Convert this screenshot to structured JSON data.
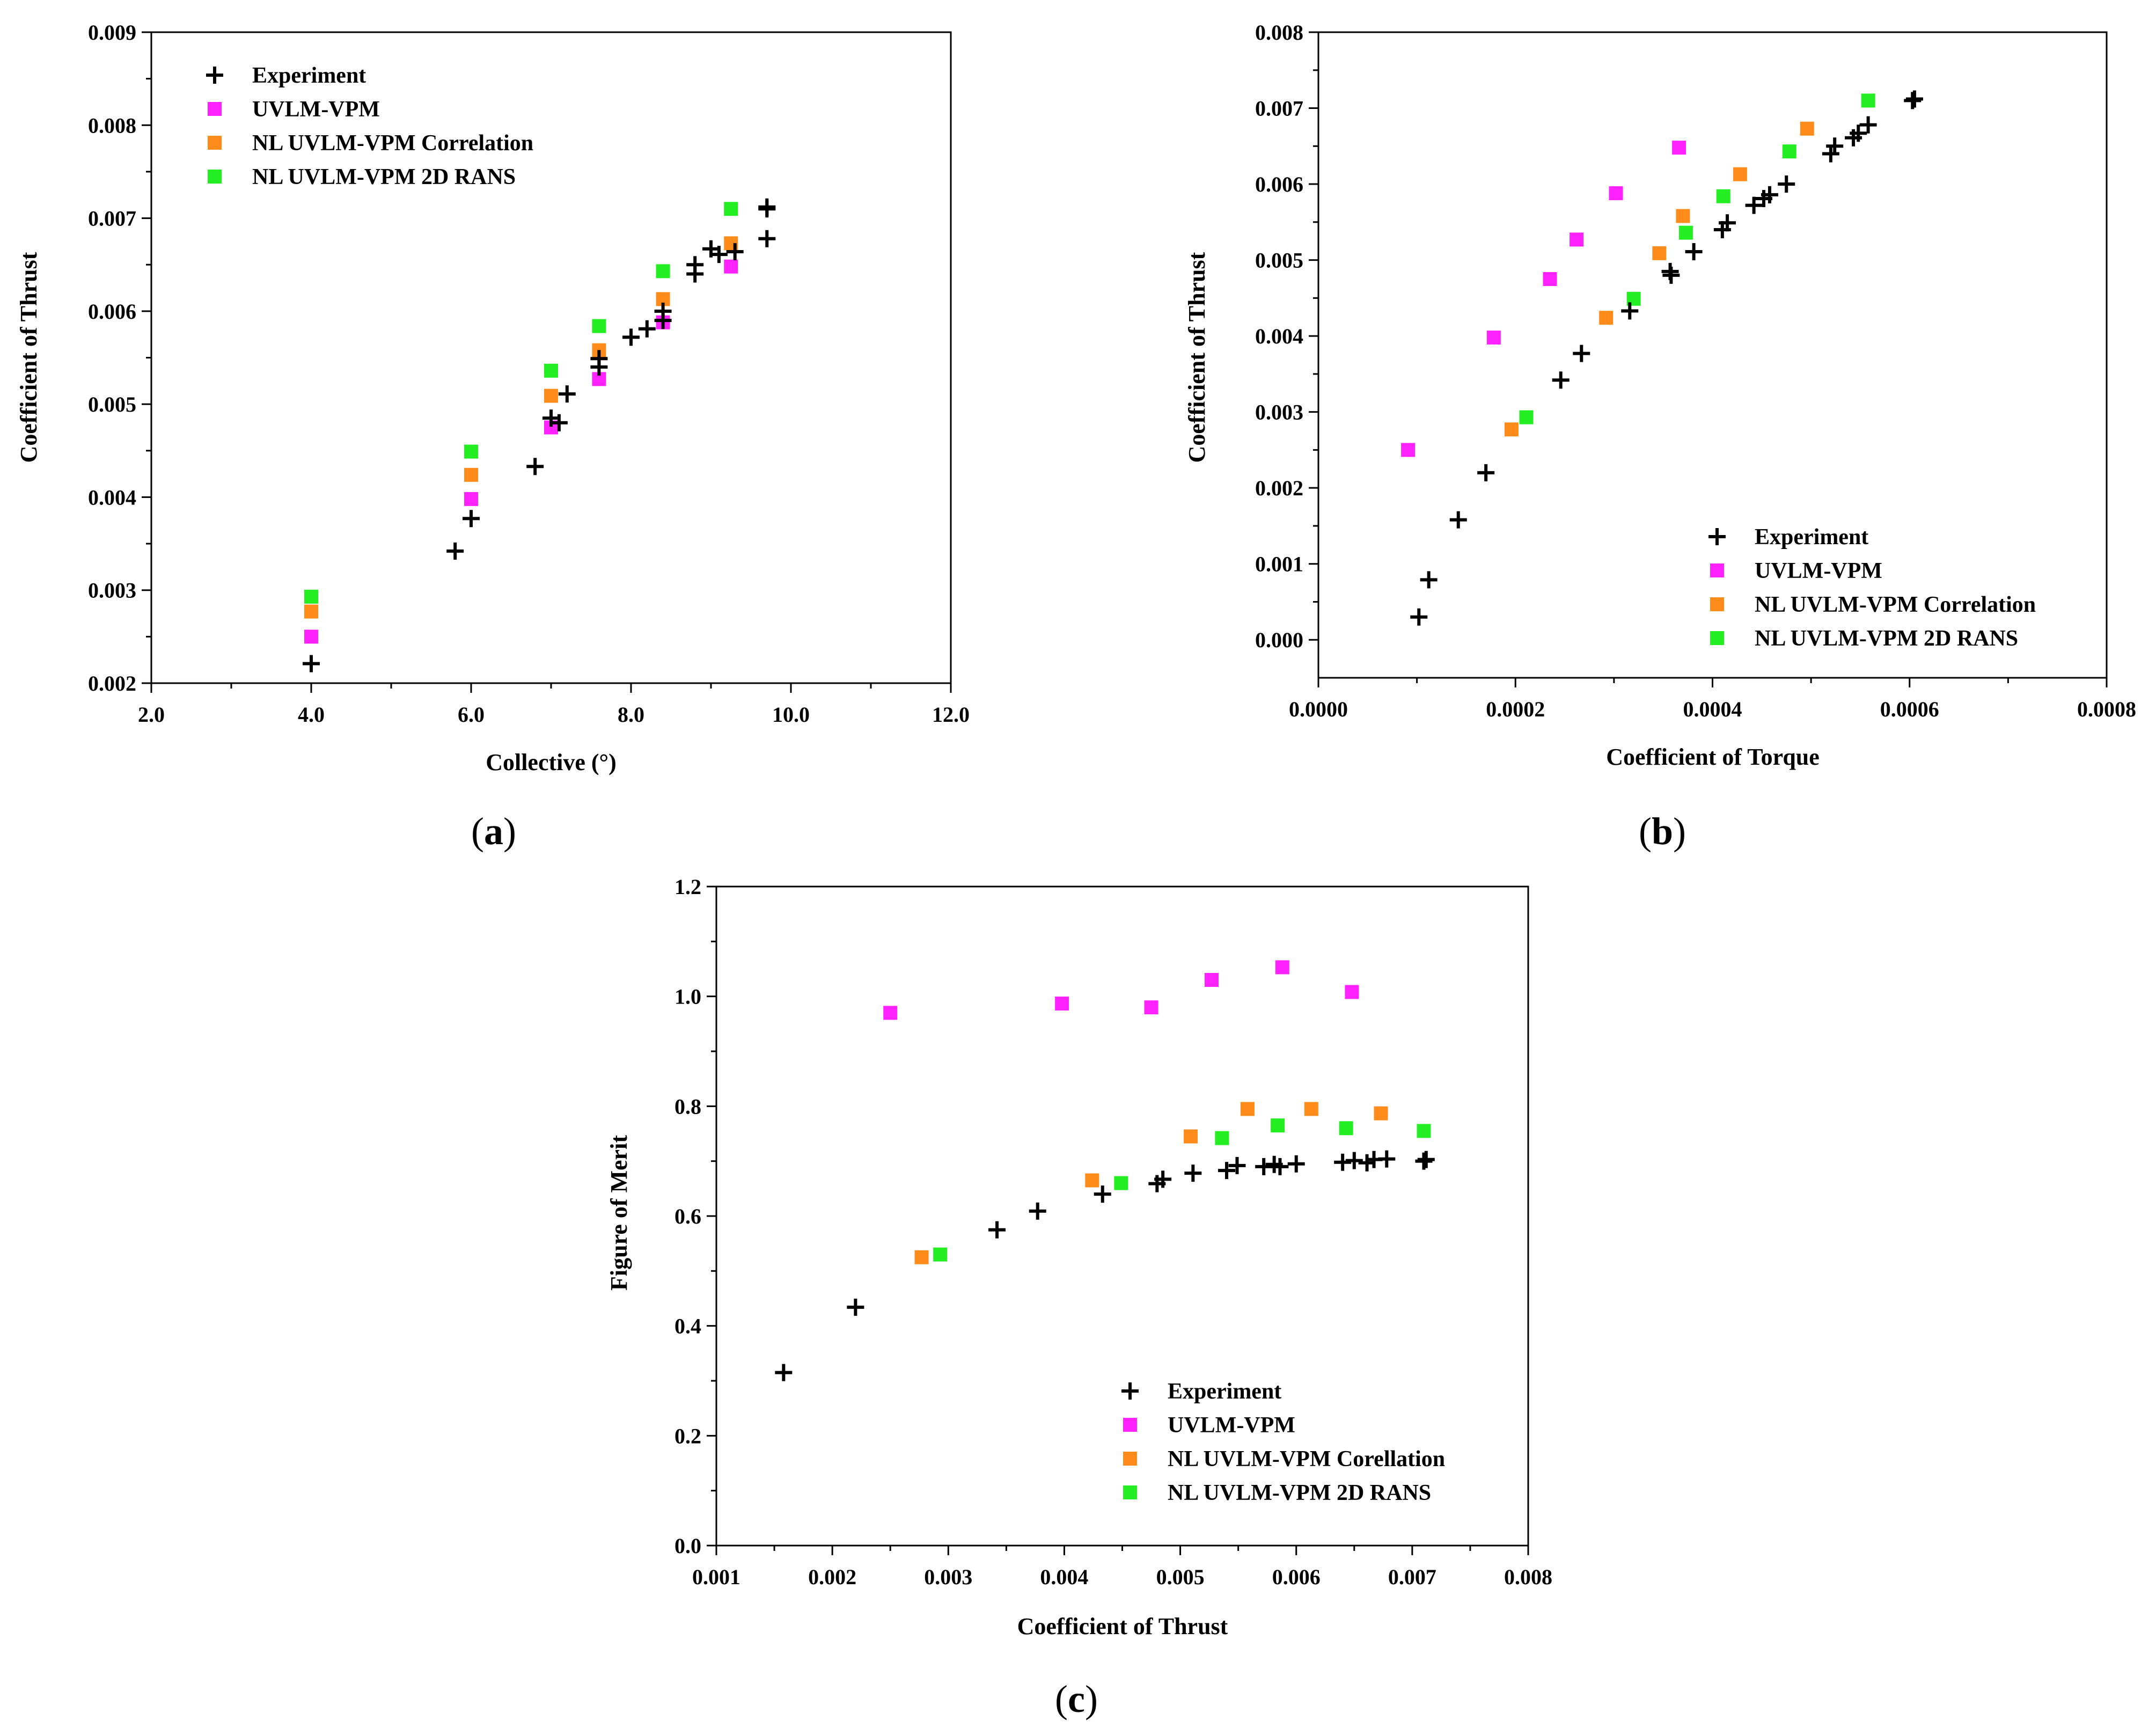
{
  "colors": {
    "experiment": "#000000",
    "uvlm": "#ff22ff",
    "correlation": "#ff8c1a",
    "rans": "#22ee22"
  },
  "chart_data": [
    {
      "id": "a",
      "type": "scatter",
      "caption": "a",
      "xlabel": "Collective (°)",
      "ylabel": "Coefficient of Thrust",
      "xlim": [
        2.0,
        12.0
      ],
      "ylim": [
        0.002,
        0.009
      ],
      "xticks": [
        "2.0",
        "4.0",
        "6.0",
        "8.0",
        "10.0",
        "12.0"
      ],
      "xtick_values": [
        2,
        4,
        6,
        8,
        10,
        12
      ],
      "yticks": [
        "0.002",
        "0.003",
        "0.004",
        "0.005",
        "0.006",
        "0.007",
        "0.008",
        "0.009"
      ],
      "ytick_values": [
        0.002,
        0.003,
        0.004,
        0.005,
        0.006,
        0.007,
        0.008,
        0.009
      ],
      "legend_position": "top-left",
      "series": [
        {
          "name": "Experiment",
          "marker": "plus",
          "color_key": "experiment",
          "points": [
            [
              4.0,
              0.00221
            ],
            [
              5.8,
              0.00342
            ],
            [
              6.0,
              0.00377
            ],
            [
              6.8,
              0.00433
            ],
            [
              7.0,
              0.00485
            ],
            [
              7.1,
              0.0048
            ],
            [
              7.2,
              0.00511
            ],
            [
              7.6,
              0.0054
            ],
            [
              7.6,
              0.00549
            ],
            [
              8.0,
              0.00572
            ],
            [
              8.2,
              0.00581
            ],
            [
              8.4,
              0.0059
            ],
            [
              8.4,
              0.006
            ],
            [
              8.8,
              0.0064
            ],
            [
              8.8,
              0.0065
            ],
            [
              9.0,
              0.00667
            ],
            [
              9.1,
              0.00661
            ],
            [
              9.3,
              0.00664
            ],
            [
              9.7,
              0.0071
            ],
            [
              9.7,
              0.00712
            ],
            [
              9.7,
              0.00678
            ]
          ]
        },
        {
          "name": "UVLM-VPM",
          "marker": "square",
          "color_key": "uvlm",
          "points": [
            [
              4.0,
              0.0025
            ],
            [
              6.0,
              0.00398
            ],
            [
              7.0,
              0.00475
            ],
            [
              7.6,
              0.00527
            ],
            [
              8.4,
              0.00588
            ],
            [
              9.25,
              0.00648
            ]
          ]
        },
        {
          "name": "NL UVLM-VPM Correlation",
          "marker": "square",
          "color_key": "correlation",
          "points": [
            [
              4.0,
              0.00277
            ],
            [
              6.0,
              0.00424
            ],
            [
              7.0,
              0.00509
            ],
            [
              7.6,
              0.00558
            ],
            [
              8.4,
              0.00613
            ],
            [
              9.25,
              0.00673
            ]
          ]
        },
        {
          "name": "NL UVLM-VPM 2D RANS",
          "marker": "square",
          "color_key": "rans",
          "points": [
            [
              4.0,
              0.00293
            ],
            [
              6.0,
              0.00449
            ],
            [
              7.0,
              0.00536
            ],
            [
              7.6,
              0.00584
            ],
            [
              8.4,
              0.00643
            ],
            [
              9.25,
              0.0071
            ]
          ]
        }
      ]
    },
    {
      "id": "b",
      "type": "scatter",
      "caption": "b",
      "xlabel": "Coefficient of Torque",
      "ylabel": "Coefficient of Thrust",
      "xlim": [
        0.0,
        0.0008
      ],
      "ylim": [
        -0.0005,
        0.008
      ],
      "xticks": [
        "0.0000",
        "0.0002",
        "0.0004",
        "0.0006",
        "0.0008"
      ],
      "xtick_values": [
        0.0,
        0.0002,
        0.0004,
        0.0006,
        0.0008
      ],
      "yticks": [
        "0.000",
        "0.001",
        "0.002",
        "0.003",
        "0.004",
        "0.005",
        "0.006",
        "0.007",
        "0.008"
      ],
      "ytick_values": [
        0.0,
        0.001,
        0.002,
        0.003,
        0.004,
        0.005,
        0.006,
        0.007,
        0.008
      ],
      "legend_position": "bottom-right",
      "series": [
        {
          "name": "Experiment",
          "marker": "plus",
          "color_key": "experiment",
          "points": [
            [
              0.000102,
              0.0003
            ],
            [
              0.000112,
              0.00079
            ],
            [
              0.000142,
              0.00158
            ],
            [
              0.00017,
              0.0022
            ],
            [
              0.000246,
              0.00342
            ],
            [
              0.000267,
              0.00377
            ],
            [
              0.000316,
              0.00433
            ],
            [
              0.000357,
              0.00485
            ],
            [
              0.000358,
              0.0048
            ],
            [
              0.000381,
              0.00511
            ],
            [
              0.00041,
              0.0054
            ],
            [
              0.000415,
              0.00549
            ],
            [
              0.000442,
              0.00572
            ],
            [
              0.000452,
              0.00581
            ],
            [
              0.000458,
              0.00586
            ],
            [
              0.000475,
              0.006
            ],
            [
              0.00052,
              0.0064
            ],
            [
              0.000524,
              0.0065
            ],
            [
              0.000543,
              0.00661
            ],
            [
              0.000548,
              0.00667
            ],
            [
              0.000558,
              0.00678
            ],
            [
              0.000603,
              0.0071
            ],
            [
              0.000605,
              0.00712
            ]
          ]
        },
        {
          "name": "UVLM-VPM",
          "marker": "square",
          "color_key": "uvlm",
          "points": [
            [
              9.1e-05,
              0.0025
            ],
            [
              0.000178,
              0.00398
            ],
            [
              0.000235,
              0.00475
            ],
            [
              0.000262,
              0.00527
            ],
            [
              0.000302,
              0.00588
            ],
            [
              0.000366,
              0.00648
            ]
          ]
        },
        {
          "name": "NL UVLM-VPM Correlation",
          "marker": "square",
          "color_key": "correlation",
          "points": [
            [
              0.000196,
              0.00277
            ],
            [
              0.000292,
              0.00424
            ],
            [
              0.000346,
              0.00509
            ],
            [
              0.00037,
              0.00558
            ],
            [
              0.000428,
              0.00613
            ],
            [
              0.000496,
              0.00673
            ]
          ]
        },
        {
          "name": "NL UVLM-VPM 2D RANS",
          "marker": "square",
          "color_key": "rans",
          "points": [
            [
              0.000211,
              0.00293
            ],
            [
              0.00032,
              0.00449
            ],
            [
              0.000373,
              0.00536
            ],
            [
              0.000411,
              0.00584
            ],
            [
              0.000478,
              0.00643
            ],
            [
              0.000558,
              0.0071
            ]
          ]
        }
      ]
    },
    {
      "id": "c",
      "type": "scatter",
      "caption": "c",
      "xlabel": "Coefficient of Thrust",
      "ylabel": "Figure of Merit",
      "xlim": [
        0.001,
        0.008
      ],
      "ylim": [
        0.0,
        1.2
      ],
      "xticks": [
        "0.001",
        "0.002",
        "0.003",
        "0.004",
        "0.005",
        "0.006",
        "0.007",
        "0.008"
      ],
      "xtick_values": [
        0.001,
        0.002,
        0.003,
        0.004,
        0.005,
        0.006,
        0.007,
        0.008
      ],
      "yticks": [
        "0.0",
        "0.2",
        "0.4",
        "0.6",
        "0.8",
        "1.0",
        "1.2"
      ],
      "ytick_values": [
        0.0,
        0.2,
        0.4,
        0.6,
        0.8,
        1.0,
        1.2
      ],
      "legend_position": "bottom-right",
      "series": [
        {
          "name": "Experiment",
          "marker": "plus",
          "color_key": "experiment",
          "points": [
            [
              0.00158,
              0.315
            ],
            [
              0.0022,
              0.434
            ],
            [
              0.00342,
              0.575
            ],
            [
              0.00377,
              0.609
            ],
            [
              0.00433,
              0.64
            ],
            [
              0.0048,
              0.659
            ],
            [
              0.00485,
              0.667
            ],
            [
              0.00511,
              0.678
            ],
            [
              0.0054,
              0.683
            ],
            [
              0.00549,
              0.692
            ],
            [
              0.00572,
              0.69
            ],
            [
              0.00581,
              0.694
            ],
            [
              0.00586,
              0.69
            ],
            [
              0.006,
              0.695
            ],
            [
              0.0064,
              0.698
            ],
            [
              0.0065,
              0.701
            ],
            [
              0.00661,
              0.697
            ],
            [
              0.00667,
              0.703
            ],
            [
              0.00678,
              0.704
            ],
            [
              0.0071,
              0.7
            ],
            [
              0.00712,
              0.703
            ]
          ]
        },
        {
          "name": "UVLM-VPM",
          "marker": "square",
          "color_key": "uvlm",
          "points": [
            [
              0.0025,
              0.97
            ],
            [
              0.00398,
              0.987
            ],
            [
              0.00475,
              0.98
            ],
            [
              0.00527,
              1.03
            ],
            [
              0.00588,
              1.053
            ],
            [
              0.00648,
              1.008
            ]
          ]
        },
        {
          "name": "NL UVLM-VPM Corellation",
          "marker": "square",
          "color_key": "correlation",
          "points": [
            [
              0.00277,
              0.525
            ],
            [
              0.00424,
              0.665
            ],
            [
              0.00509,
              0.745
            ],
            [
              0.00558,
              0.795
            ],
            [
              0.00613,
              0.795
            ],
            [
              0.00673,
              0.787
            ]
          ]
        },
        {
          "name": "NL UVLM-VPM 2D RANS",
          "marker": "square",
          "color_key": "rans",
          "points": [
            [
              0.00293,
              0.53
            ],
            [
              0.00449,
              0.66
            ],
            [
              0.00536,
              0.742
            ],
            [
              0.00584,
              0.765
            ],
            [
              0.00643,
              0.76
            ],
            [
              0.0071,
              0.755
            ]
          ]
        }
      ]
    }
  ]
}
